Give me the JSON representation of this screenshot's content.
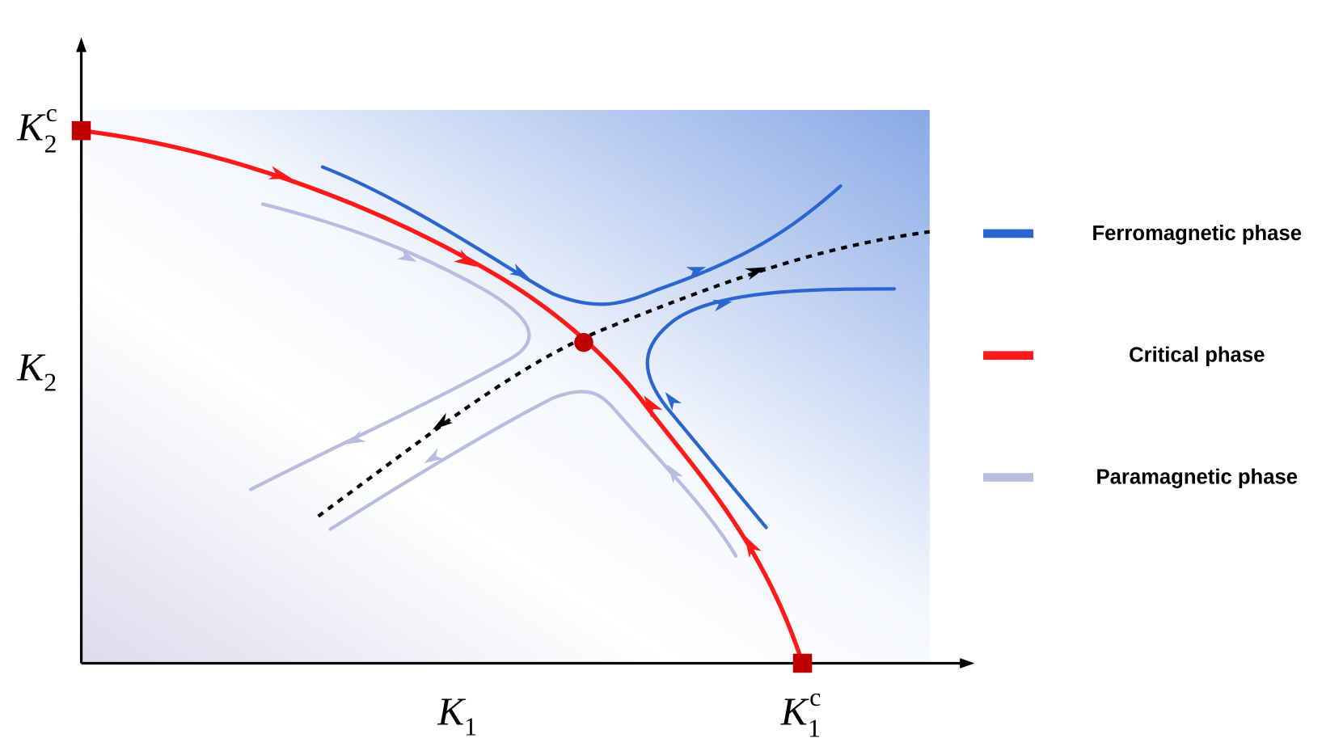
{
  "axes": {
    "x_labels": [
      {
        "base": "K",
        "sub": "1"
      },
      {
        "base": "K",
        "sub": "1",
        "sup": "c"
      }
    ],
    "y_labels": [
      {
        "base": "K",
        "sub": "2"
      },
      {
        "base": "K",
        "sub": "2",
        "sup": "c"
      }
    ]
  },
  "legend": [
    {
      "label": "Ferromagnetic phase",
      "color": "#2a66d0"
    },
    {
      "label": "Critical phase",
      "color": "#ff1a1a"
    },
    {
      "label": "Paramagnetic phase",
      "color": "#b8bde0"
    }
  ]
}
